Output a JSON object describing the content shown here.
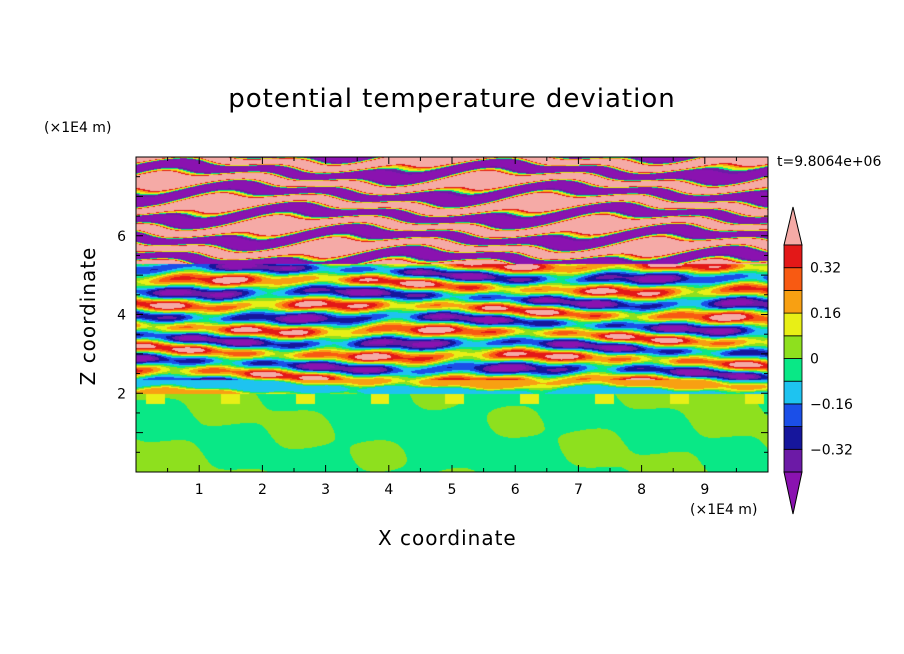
{
  "chart_data": {
    "type": "heatmap",
    "title": "potential temperature deviation",
    "xlabel": "X coordinate",
    "ylabel": "Z coordinate",
    "x_unit": "(×1E4 m)",
    "y_unit": "(×1E4 m)",
    "time_label": "t=9.8064e+06",
    "xlim": [
      0,
      10
    ],
    "ylim": [
      0,
      8
    ],
    "x_ticks": [
      "1",
      "2",
      "3",
      "4",
      "5",
      "6",
      "7",
      "8",
      "9"
    ],
    "y_ticks": [
      "2",
      "4",
      "6"
    ],
    "colorbar": {
      "levels": [
        -0.48,
        -0.4,
        -0.32,
        -0.24,
        -0.16,
        -0.08,
        0,
        0.08,
        0.16,
        0.24,
        0.32,
        0.4,
        0.48
      ],
      "tick_labels": [
        "0.32",
        "0.16",
        "0",
        "−0.16",
        "−0.32"
      ],
      "tick_values": [
        0.32,
        0.16,
        0,
        -0.16,
        -0.32
      ],
      "colors": [
        "#8a12b0",
        "#6c1aa6",
        "#16169c",
        "#1b4fe8",
        "#1ec3f0",
        "#09e886",
        "#8ee01e",
        "#e8ef16",
        "#f8a012",
        "#f85a12",
        "#e31818",
        "#f5aaa6"
      ],
      "extend": "both"
    }
  }
}
